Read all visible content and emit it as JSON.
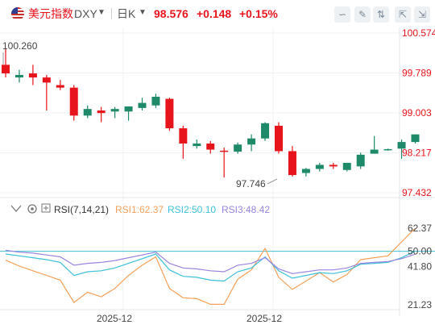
{
  "header": {
    "symbol_name": "美元指数",
    "symbol_code": "DXY",
    "timeframe": "日K",
    "price": "98.576",
    "change": "+0.148",
    "change_pct": "+0.15%"
  },
  "indicator": {
    "name": "RSI(7,14,21)",
    "rsi1_label": "RSI1:62.37",
    "rsi2_label": "RSI2:50.10",
    "rsi3_label": "RSI3:48.42"
  },
  "colors": {
    "up": "#1e8a6a",
    "down": "#e8141c",
    "rsi1": "#f5a05a",
    "rsi2": "#3ec0d8",
    "rsi3": "#9a84dd",
    "axis_price": "#e8141c",
    "grid": "#eef0f3"
  },
  "icons": [
    "us-flag-icon",
    "chevron-down-icon",
    "chart-style-icon",
    "pencil-icon",
    "compare-icon",
    "fullscreen-icon",
    "collapse-icon",
    "settings-icon",
    "eye-icon"
  ],
  "chart_data": [
    {
      "type": "candlestick",
      "title": "",
      "y_ticks": [
        "100.574",
        "99.789",
        "99.003",
        "98.217",
        "97.432"
      ],
      "ylim": [
        97.432,
        100.574
      ],
      "x_tick_labels": [
        "2025-12",
        "2025-12"
      ],
      "annotations": {
        "high_label": "100.260",
        "low_label": "97.746"
      },
      "candles": [
        {
          "o": 99.95,
          "h": 100.26,
          "l": 99.7,
          "c": 99.78
        },
        {
          "o": 99.7,
          "h": 99.85,
          "l": 99.6,
          "c": 99.75
        },
        {
          "o": 99.78,
          "h": 99.95,
          "l": 99.55,
          "c": 99.7
        },
        {
          "o": 99.7,
          "h": 99.75,
          "l": 99.05,
          "c": 99.6
        },
        {
          "o": 99.55,
          "h": 99.65,
          "l": 99.45,
          "c": 99.5
        },
        {
          "o": 99.5,
          "h": 99.55,
          "l": 98.85,
          "c": 98.95
        },
        {
          "o": 98.95,
          "h": 99.15,
          "l": 98.9,
          "c": 99.08
        },
        {
          "o": 99.05,
          "h": 99.12,
          "l": 98.82,
          "c": 99.0
        },
        {
          "o": 99.03,
          "h": 99.12,
          "l": 98.9,
          "c": 99.08
        },
        {
          "o": 99.03,
          "h": 99.13,
          "l": 98.85,
          "c": 99.13
        },
        {
          "o": 99.1,
          "h": 99.3,
          "l": 99.05,
          "c": 99.2
        },
        {
          "o": 99.15,
          "h": 99.38,
          "l": 99.1,
          "c": 99.32
        },
        {
          "o": 99.28,
          "h": 99.3,
          "l": 98.65,
          "c": 98.7
        },
        {
          "o": 98.7,
          "h": 98.75,
          "l": 98.1,
          "c": 98.4
        },
        {
          "o": 98.35,
          "h": 98.48,
          "l": 98.3,
          "c": 98.4
        },
        {
          "o": 98.4,
          "h": 98.45,
          "l": 98.2,
          "c": 98.28
        },
        {
          "o": 98.26,
          "h": 98.32,
          "l": 97.73,
          "c": 98.24
        },
        {
          "o": 98.24,
          "h": 98.42,
          "l": 98.2,
          "c": 98.38
        },
        {
          "o": 98.38,
          "h": 98.58,
          "l": 98.25,
          "c": 98.5
        },
        {
          "o": 98.5,
          "h": 98.82,
          "l": 98.45,
          "c": 98.8
        },
        {
          "o": 98.75,
          "h": 98.82,
          "l": 98.2,
          "c": 98.25
        },
        {
          "o": 98.25,
          "h": 98.35,
          "l": 97.75,
          "c": 97.78
        },
        {
          "o": 97.82,
          "h": 97.92,
          "l": 97.75,
          "c": 97.9
        },
        {
          "o": 97.9,
          "h": 98.02,
          "l": 97.85,
          "c": 97.98
        },
        {
          "o": 97.98,
          "h": 98.02,
          "l": 97.9,
          "c": 97.95
        },
        {
          "o": 97.88,
          "h": 98.02,
          "l": 97.85,
          "c": 98.02
        },
        {
          "o": 97.95,
          "h": 98.22,
          "l": 97.9,
          "c": 98.18
        },
        {
          "o": 98.2,
          "h": 98.55,
          "l": 98.2,
          "c": 98.28
        },
        {
          "o": 98.28,
          "h": 98.3,
          "l": 98.26,
          "c": 98.29
        },
        {
          "o": 98.3,
          "h": 98.48,
          "l": 98.1,
          "c": 98.43
        },
        {
          "o": 98.43,
          "h": 98.58,
          "l": 98.4,
          "c": 98.58
        }
      ]
    },
    {
      "type": "line",
      "title": "RSI(7,14,21)",
      "y_ticks": [
        "62.37",
        "50.00",
        "41.80",
        "21.23"
      ],
      "ylim": [
        21.23,
        62.37
      ],
      "reference_line": 50.0,
      "series": [
        {
          "name": "RSI1",
          "values": [
            45.2,
            42.0,
            39.5,
            37.0,
            34.5,
            22.5,
            28.0,
            25.5,
            30.0,
            37.0,
            42.5,
            47.0,
            30.0,
            25.0,
            24.5,
            21.5,
            21.5,
            35.0,
            40.0,
            51.5,
            36.0,
            29.5,
            34.0,
            38.5,
            33.5,
            37.5,
            45.5,
            46.5,
            47.5,
            55.0,
            62.37
          ]
        },
        {
          "name": "RSI2",
          "values": [
            48.5,
            47.5,
            46.5,
            45.5,
            44.0,
            37.0,
            39.0,
            39.5,
            41.0,
            43.5,
            46.0,
            48.5,
            40.0,
            36.5,
            36.0,
            34.5,
            34.0,
            39.0,
            41.0,
            47.0,
            39.5,
            35.5,
            37.0,
            38.5,
            38.0,
            39.5,
            43.0,
            43.5,
            44.0,
            46.5,
            50.1
          ]
        },
        {
          "name": "RSI3",
          "values": [
            50.5,
            49.5,
            49.0,
            48.0,
            47.0,
            42.5,
            43.5,
            44.0,
            45.0,
            46.5,
            48.0,
            49.5,
            43.5,
            41.0,
            40.5,
            39.5,
            39.0,
            42.5,
            43.5,
            46.5,
            40.5,
            38.0,
            39.0,
            40.0,
            40.0,
            41.0,
            43.5,
            44.0,
            44.5,
            46.0,
            48.42
          ]
        }
      ]
    }
  ]
}
